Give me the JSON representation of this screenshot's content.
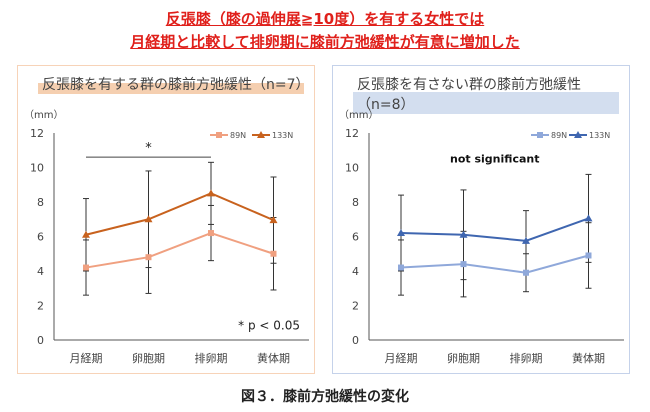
{
  "headline": [
    "反張膝（膝の過伸展≧10度）を有する女性では",
    "月経期と比較して排卵期に膝前方弛緩性が有意に増加した"
  ],
  "caption": "図３．膝前方弛緩性の変化",
  "chart_data": [
    {
      "type": "line",
      "title": "反張膝を有する群の膝前方弛緩性（n=7）",
      "ylabel": "（mm）",
      "ylim": [
        0,
        12
      ],
      "yticks": [
        0,
        2,
        4,
        6,
        8,
        10,
        12
      ],
      "categories": [
        "月経期",
        "卵胞期",
        "排卵期",
        "黄体期"
      ],
      "series": [
        {
          "name": "89N",
          "color": "#f0a080",
          "marker": "square",
          "values": [
            4.2,
            4.8,
            6.2,
            5.0
          ],
          "error": [
            1.6,
            2.1,
            1.6,
            2.1
          ]
        },
        {
          "name": "133N",
          "color": "#c8621e",
          "marker": "triangle",
          "values": [
            6.1,
            7.0,
            8.5,
            6.95
          ],
          "error": [
            2.1,
            2.8,
            1.8,
            2.5
          ]
        }
      ],
      "annotation": "*",
      "annotation_span": [
        "月経期",
        "排卵期"
      ],
      "note": "* p < 0.05",
      "accent": "#f5cfb0",
      "border": "#f7d3b8"
    },
    {
      "type": "line",
      "title": "反張膝を有さない群の膝前方弛緩性（n=8）",
      "ylabel": "（mm）",
      "ylim": [
        0,
        12
      ],
      "yticks": [
        0,
        2,
        4,
        6,
        8,
        10,
        12
      ],
      "categories": [
        "月経期",
        "卵胞期",
        "排卵期",
        "黄体期"
      ],
      "series": [
        {
          "name": "89N",
          "color": "#8fa8da",
          "marker": "square",
          "values": [
            4.2,
            4.4,
            3.9,
            4.9
          ],
          "error": [
            1.6,
            1.9,
            1.1,
            1.9
          ]
        },
        {
          "name": "133N",
          "color": "#3f66b0",
          "marker": "triangle",
          "values": [
            6.2,
            6.1,
            5.75,
            7.05
          ],
          "error": [
            2.2,
            2.6,
            1.75,
            2.55
          ]
        }
      ],
      "annotation": "not significant",
      "note": "",
      "accent": "#d3deef",
      "border": "#c5d2ea"
    }
  ]
}
